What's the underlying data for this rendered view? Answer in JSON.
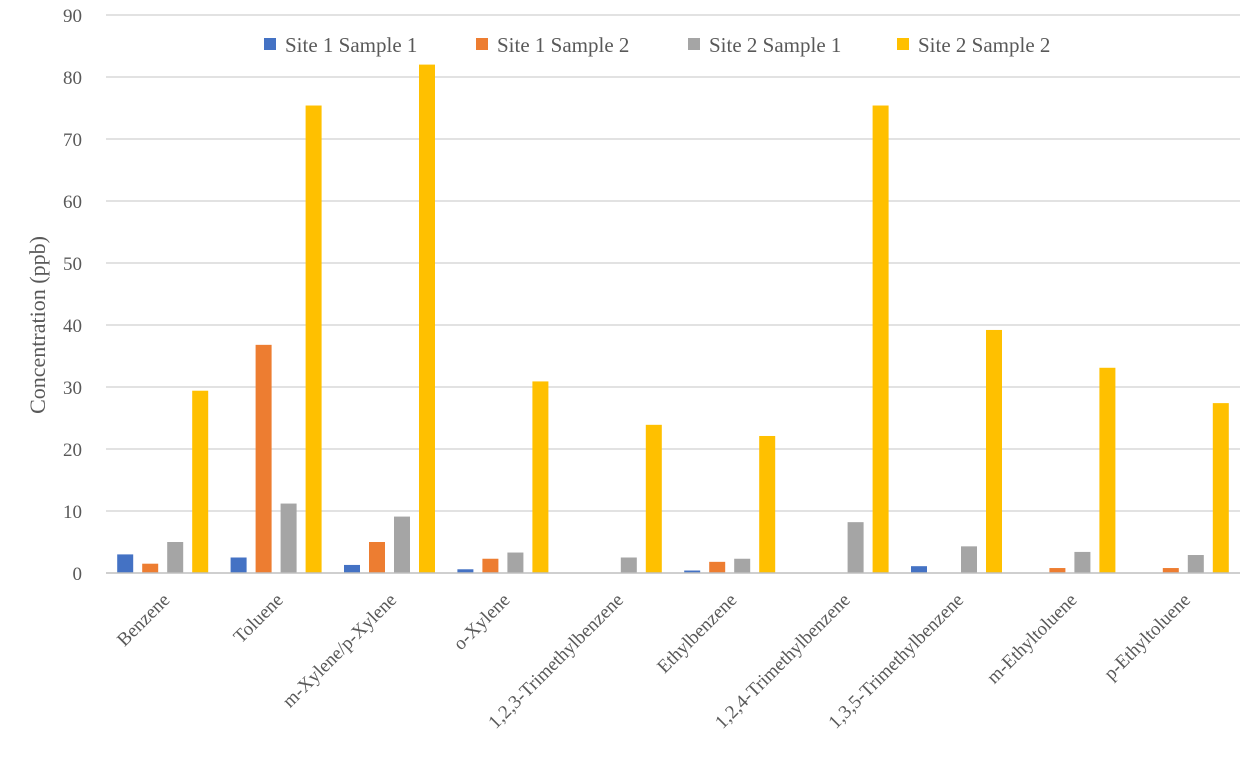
{
  "chart_data": {
    "type": "bar",
    "title": "",
    "xlabel": "",
    "ylabel": "Concentration (ppb)",
    "ylim": [
      0,
      90
    ],
    "yticks": [
      0,
      10,
      20,
      30,
      40,
      50,
      60,
      70,
      80,
      90
    ],
    "grid": true,
    "legend_position": "top",
    "categories": [
      "Benzene",
      "Toluene",
      "m-Xylene/p-Xylene",
      "o-Xylene",
      "1,2,3-Trimethylbenzene",
      "Ethylbenzene",
      "1,2,4-Trimethylbenzene",
      "1,3,5-Trimethylbenzene",
      "m-Ethyltoluene",
      "p-Ethyltoluene"
    ],
    "series": [
      {
        "name": "Site 1 Sample 1",
        "color": "#4472C4",
        "values": [
          3.0,
          2.5,
          1.3,
          0.6,
          0,
          0.4,
          0,
          1.1,
          0,
          0
        ]
      },
      {
        "name": "Site 1 Sample 2",
        "color": "#ED7D31",
        "values": [
          1.5,
          36.8,
          5.0,
          2.3,
          0,
          1.8,
          0,
          0,
          0.8,
          0.8
        ]
      },
      {
        "name": "Site 2 Sample 1",
        "color": "#A5A5A5",
        "values": [
          5.0,
          11.2,
          9.1,
          3.3,
          2.5,
          2.3,
          8.2,
          4.3,
          3.4,
          2.9
        ]
      },
      {
        "name": "Site 2 Sample 2",
        "color": "#FFC000",
        "values": [
          29.4,
          75.4,
          82.0,
          30.9,
          23.9,
          22.1,
          75.4,
          39.2,
          33.1,
          27.4
        ]
      }
    ]
  }
}
